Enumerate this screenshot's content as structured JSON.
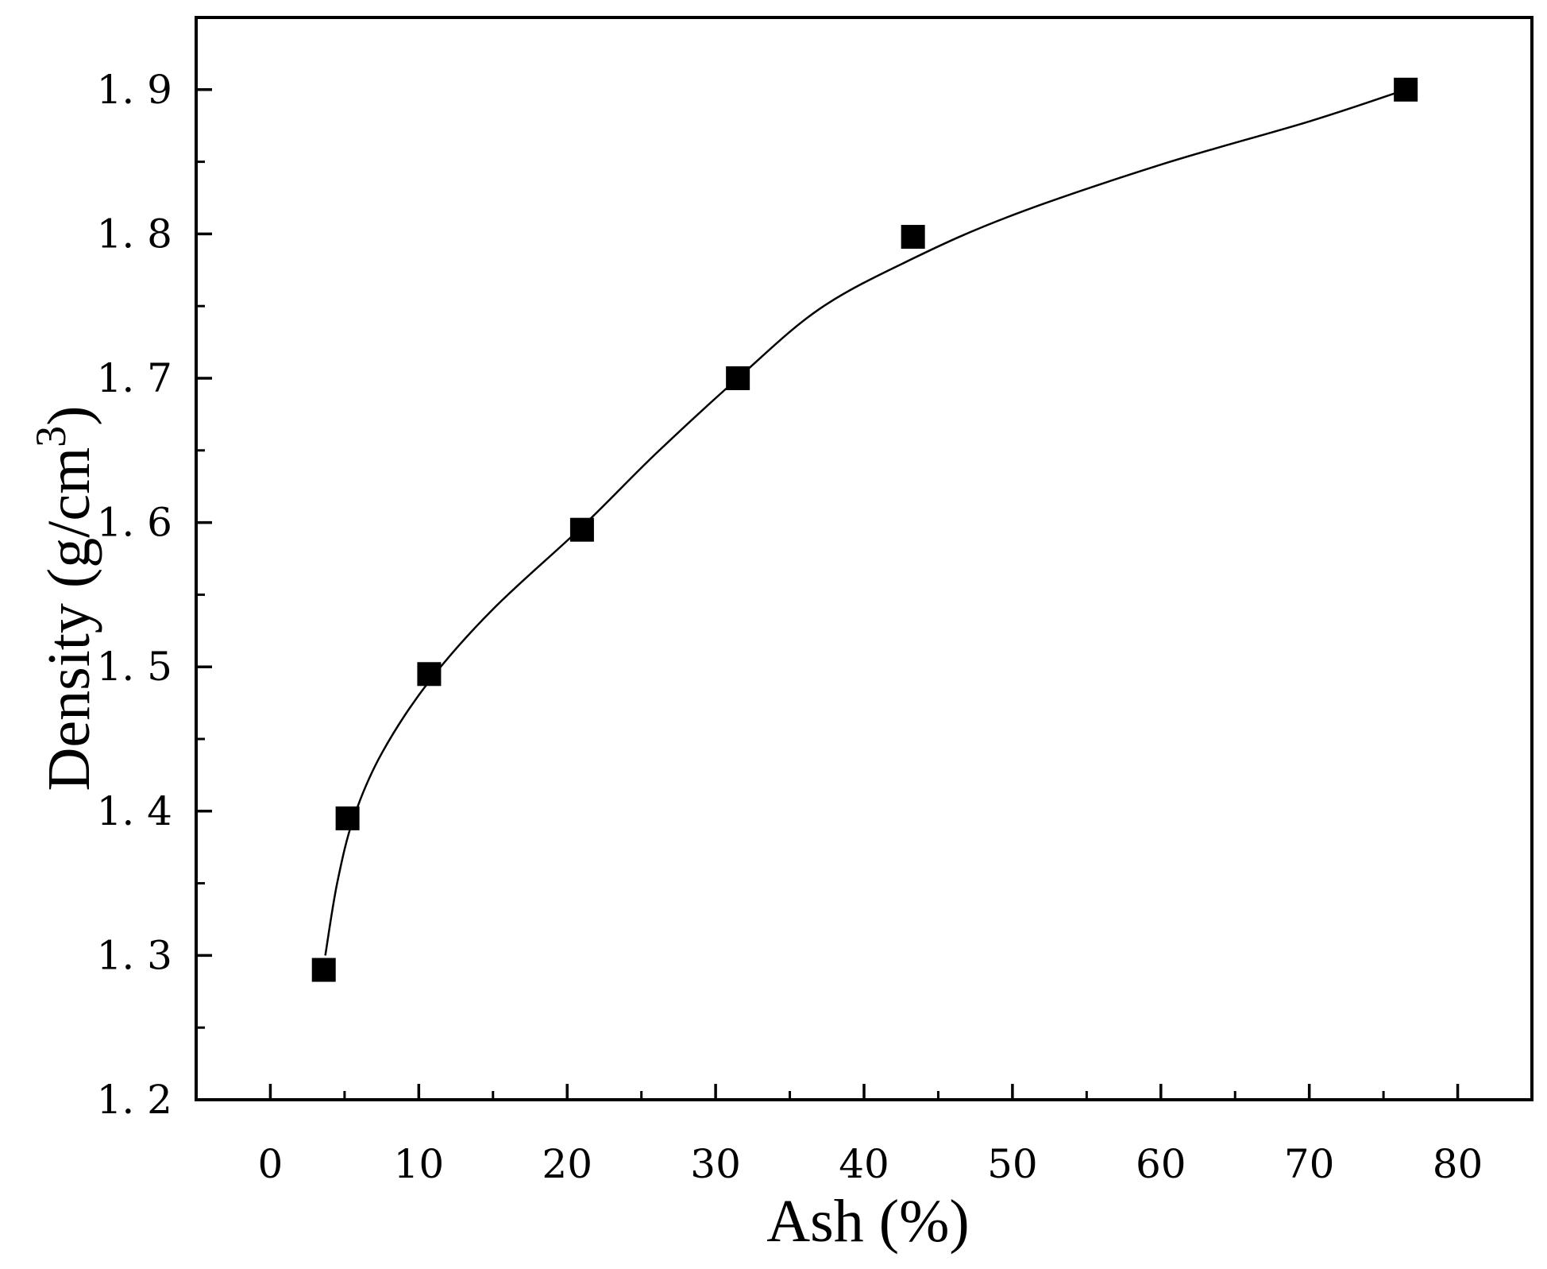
{
  "chart_data": {
    "type": "scatter",
    "xlabel": "Ash (%)",
    "ylabel": "Density (g/cm",
    "ylabel_superscript": "3",
    "ylabel_close": ")",
    "xlim": [
      -5,
      85
    ],
    "ylim": [
      1.2,
      1.95
    ],
    "x_ticks": [
      0,
      10,
      20,
      30,
      40,
      50,
      60,
      70,
      80
    ],
    "x_tick_labels": [
      "0",
      "10",
      "20",
      "30",
      "40",
      "50",
      "60",
      "70",
      "80"
    ],
    "y_ticks": [
      1.2,
      1.3,
      1.4,
      1.5,
      1.6,
      1.7,
      1.8,
      1.9
    ],
    "y_tick_labels": [
      "1. 2",
      "1. 3",
      "1. 4",
      "1. 5",
      "1. 6",
      "1. 7",
      "1. 8",
      "1. 9"
    ],
    "grid": false,
    "marker": "square",
    "marker_color": "#000000",
    "line_color": "#000000",
    "series": [
      {
        "points": [
          {
            "x": 3.6,
            "y": 1.29
          },
          {
            "x": 5.2,
            "y": 1.395
          },
          {
            "x": 10.7,
            "y": 1.495
          },
          {
            "x": 21.0,
            "y": 1.595
          },
          {
            "x": 31.5,
            "y": 1.7
          },
          {
            "x": 43.3,
            "y": 1.798
          },
          {
            "x": 76.5,
            "y": 1.9
          }
        ]
      }
    ],
    "fit_curve": [
      {
        "x": 3.7,
        "y": 1.3
      },
      {
        "x": 4.5,
        "y": 1.35
      },
      {
        "x": 5.6,
        "y": 1.395
      },
      {
        "x": 7.5,
        "y": 1.44
      },
      {
        "x": 10.7,
        "y": 1.49
      },
      {
        "x": 15.0,
        "y": 1.54
      },
      {
        "x": 21.0,
        "y": 1.597
      },
      {
        "x": 26.0,
        "y": 1.648
      },
      {
        "x": 31.5,
        "y": 1.7
      },
      {
        "x": 37.0,
        "y": 1.748
      },
      {
        "x": 43.3,
        "y": 1.783
      },
      {
        "x": 50.0,
        "y": 1.813
      },
      {
        "x": 60.0,
        "y": 1.848
      },
      {
        "x": 70.0,
        "y": 1.878
      },
      {
        "x": 76.5,
        "y": 1.9
      }
    ]
  }
}
